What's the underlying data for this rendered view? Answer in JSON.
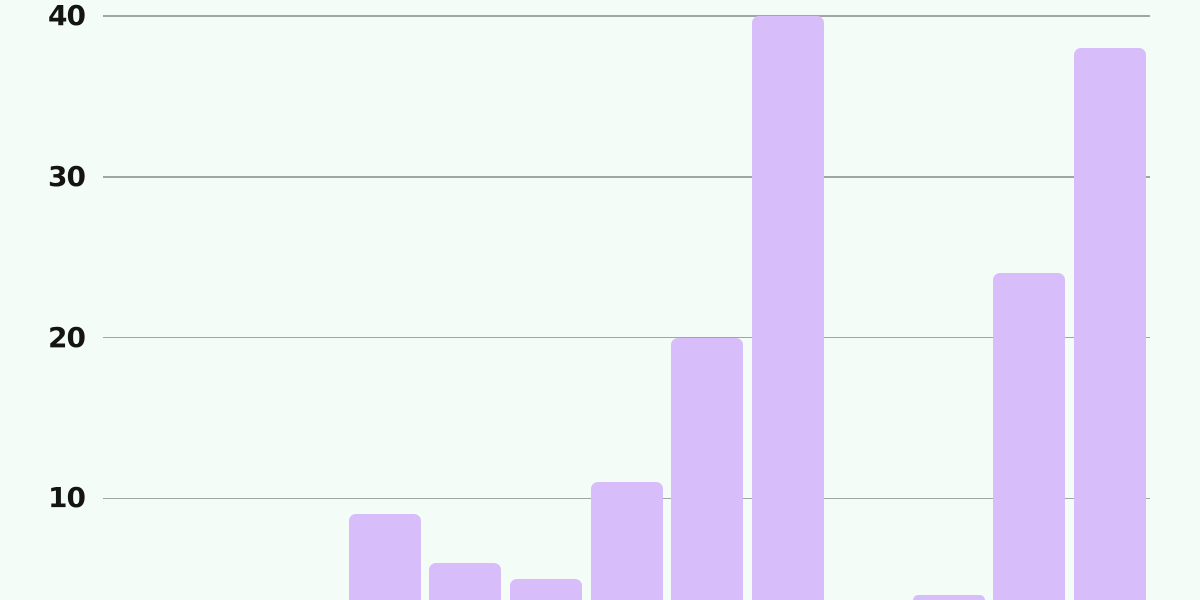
{
  "colors": {
    "background": "#f4fcf8",
    "bar_fill": "#d7befa",
    "gridline": "#a2a6a3",
    "tick_label": "#141414"
  },
  "chart_data": {
    "type": "bar",
    "title": "",
    "xlabel": "",
    "ylabel": "",
    "categories": null,
    "n_categories": 13,
    "values": [
      null,
      null,
      null,
      9,
      6,
      5,
      11,
      20,
      40,
      null,
      4,
      24,
      38
    ],
    "yticks": [
      10,
      20,
      30,
      40
    ],
    "ylim": [
      0,
      40
    ],
    "grid": "horizontal",
    "legend": "none",
    "x_axis_visible": false,
    "bottom_cropped": true
  }
}
